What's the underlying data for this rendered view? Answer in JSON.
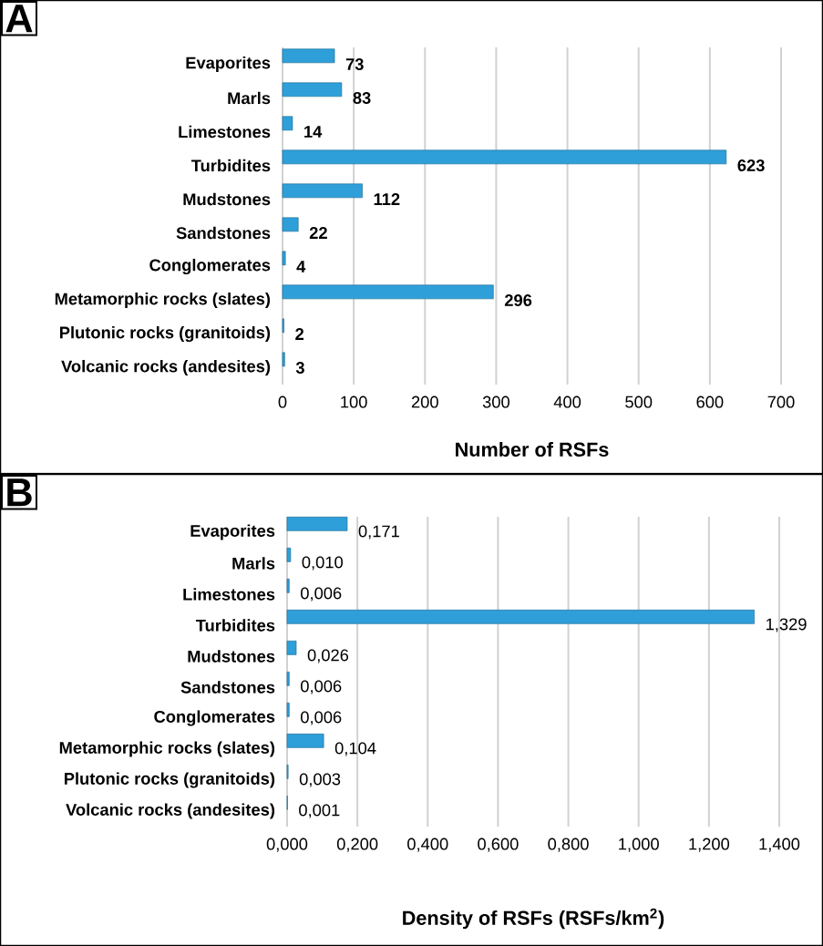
{
  "chart_data": [
    {
      "type": "bar",
      "title": "A",
      "orientation": "horizontal",
      "categories": [
        "Evaporites",
        "Marls",
        "Limestones",
        "Turbidites",
        "Mudstones",
        "Sandstones",
        "Conglomerates",
        "Metamorphic rocks (slates)",
        "Plutonic rocks (granitoids)",
        "Volcanic rocks (andesites)"
      ],
      "values": [
        73,
        83,
        14,
        623,
        112,
        22,
        4,
        296,
        2,
        3
      ],
      "color": "#2e9fd9",
      "xlim": [
        0,
        700
      ],
      "xticks": [
        0,
        100,
        200,
        300,
        400,
        500,
        600,
        700
      ],
      "xlabel": "Number of RSFs",
      "grid": "x",
      "data_labels": true
    },
    {
      "type": "bar",
      "title": "B",
      "orientation": "horizontal",
      "categories": [
        "Evaporites",
        "Marls",
        "Limestones",
        "Turbidites",
        "Mudstones",
        "Sandstones",
        "Conglomerates",
        "Metamorphic rocks (slates)",
        "Plutonic rocks (granitoids)",
        "Volcanic rocks (andesites)"
      ],
      "values": [
        0.171,
        0.01,
        0.006,
        1.329,
        0.026,
        0.006,
        0.006,
        0.104,
        0.003,
        0.001
      ],
      "value_labels": [
        "0,171",
        "0,010",
        "0,006",
        "1,329",
        "0,026",
        "0,006",
        "0,006",
        "0,104",
        "0,003",
        "0,001"
      ],
      "color": "#2e9fd9",
      "xlim": [
        0,
        1.4
      ],
      "xticks": [
        {
          "value": 0,
          "label": "0,000"
        },
        {
          "value": 0.2,
          "label": "0,200"
        },
        {
          "value": 0.4,
          "label": "0,400"
        },
        {
          "value": 0.6,
          "label": "0,600"
        },
        {
          "value": 0.8,
          "label": "0,800"
        },
        {
          "value": 1.0,
          "label": "1,000"
        },
        {
          "value": 1.2,
          "label": "1,200"
        },
        {
          "value": 1.4,
          "label": "1,400"
        }
      ],
      "xlabel": "Density of RSFs (RSFs/km$^{2}$)",
      "grid": "x"
    }
  ]
}
